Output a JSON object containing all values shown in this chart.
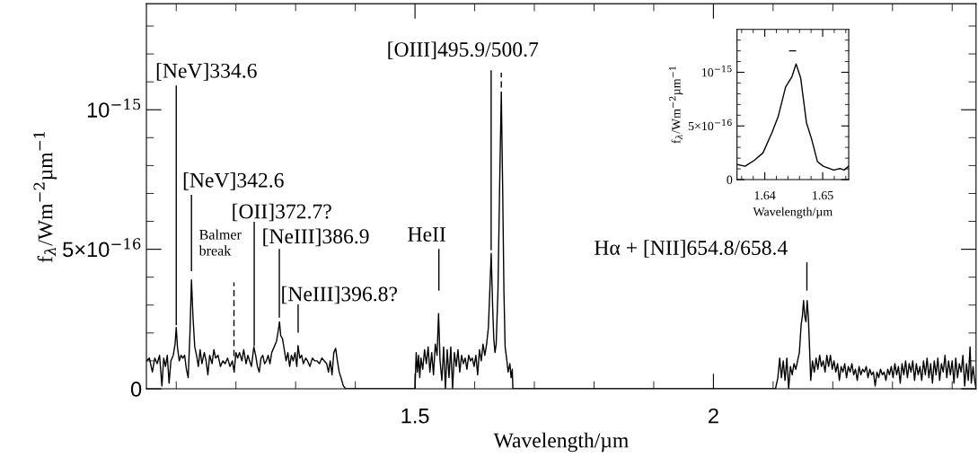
{
  "chart_data": [
    {
      "type": "line",
      "xlabel": "Wavelength/µm",
      "ylabel": "f$_{λ}$/Wm$^{−2}$µm$^{−1}$",
      "xlim": [
        1.05,
        2.44
      ],
      "ylim": [
        0,
        1.38e-15
      ],
      "xticks": [
        {
          "value": 1.1,
          "label": null
        },
        {
          "value": 1.2,
          "label": null
        },
        {
          "value": 1.3,
          "label": null
        },
        {
          "value": 1.4,
          "label": null
        },
        1.5,
        {
          "value": 1.6,
          "label": null
        },
        {
          "value": 1.7,
          "label": null
        },
        {
          "value": 1.8,
          "label": null
        },
        {
          "value": 1.9,
          "label": null
        },
        2,
        {
          "value": 2.1,
          "label": null
        },
        {
          "value": 2.2,
          "label": null
        },
        {
          "value": 2.3,
          "label": null
        },
        {
          "value": 2.4,
          "label": null
        }
      ],
      "yticks": [
        0,
        {
          "value": 1e-16,
          "label": null
        },
        {
          "value": 2e-16,
          "label": null
        },
        {
          "value": 3e-16,
          "label": null
        },
        {
          "value": 4e-16,
          "label": null
        },
        {
          "value": 5e-16,
          "label": "5×10$^{−16}$"
        },
        {
          "value": 6e-16,
          "label": null
        },
        {
          "value": 7e-16,
          "label": null
        },
        {
          "value": 8e-16,
          "label": null
        },
        {
          "value": 9e-16,
          "label": null
        },
        {
          "value": 1e-15,
          "label": "10$^{−15}$"
        },
        {
          "value": 1.1e-15,
          "label": null
        },
        {
          "value": 1.2e-15,
          "label": null
        },
        {
          "value": 1.3e-15,
          "label": null
        }
      ],
      "grid": false,
      "line_style": "solid",
      "marker": "none",
      "series": [
        {
          "color": "#000000",
          "x": [
            1.05,
            1.055,
            1.06,
            1.064,
            1.068,
            1.072,
            1.076,
            1.079,
            1.082,
            1.085,
            1.088,
            1.091,
            1.095,
            1.098,
            1.1,
            1.102,
            1.105,
            1.108,
            1.111,
            1.114,
            1.117,
            1.12,
            1.123,
            1.1255,
            1.128,
            1.131,
            1.134,
            1.137,
            1.14,
            1.143,
            1.147,
            1.15,
            1.153,
            1.156,
            1.16,
            1.163,
            1.166,
            1.17,
            1.174,
            1.178,
            1.182,
            1.186,
            1.19,
            1.194,
            1.197,
            1.2,
            1.203,
            1.206,
            1.21,
            1.213,
            1.217,
            1.22,
            1.223,
            1.226,
            1.23,
            1.233,
            1.236,
            1.239,
            1.242,
            1.245,
            1.248,
            1.251,
            1.254,
            1.257,
            1.26,
            1.264,
            1.268,
            1.271,
            1.273,
            1.275,
            1.278,
            1.281,
            1.284,
            1.287,
            1.29,
            1.293,
            1.296,
            1.299,
            1.302,
            1.304,
            1.307,
            1.31,
            1.313,
            1.317,
            1.32,
            1.324,
            1.328,
            1.332,
            1.336,
            1.34,
            1.344,
            1.348,
            1.352,
            1.355,
            1.358,
            1.361,
            1.364,
            1.367,
            1.37,
            1.373,
            1.376,
            1.38,
            1.384,
            1.5,
            1.502,
            1.504,
            1.506,
            1.508,
            1.51,
            1.513,
            1.516,
            1.519,
            1.522,
            1.525,
            1.528,
            1.531,
            1.534,
            1.537,
            1.5395,
            1.542,
            1.545,
            1.548,
            1.551,
            1.554,
            1.557,
            1.56,
            1.563,
            1.566,
            1.569,
            1.572,
            1.575,
            1.578,
            1.581,
            1.584,
            1.587,
            1.59,
            1.593,
            1.596,
            1.599,
            1.602,
            1.605,
            1.608,
            1.611,
            1.614,
            1.617,
            1.62,
            1.623,
            1.6255,
            1.6277,
            1.63,
            1.632,
            1.634,
            1.636,
            1.639,
            1.642,
            1.6446,
            1.647,
            1.649,
            1.651,
            1.654,
            1.656,
            1.659,
            1.661,
            1.663,
            1.664,
            2.104,
            2.108,
            2.111,
            2.114,
            2.117,
            2.12,
            2.123,
            2.126,
            2.129,
            2.132,
            2.135,
            2.138,
            2.141,
            2.144,
            2.147,
            2.149,
            2.151,
            2.153,
            2.155,
            2.157,
            2.159,
            2.161,
            2.163,
            2.166,
            2.169,
            2.172,
            2.175,
            2.178,
            2.181,
            2.184,
            2.187,
            2.19,
            2.193,
            2.196,
            2.199,
            2.202,
            2.205,
            2.208,
            2.211,
            2.214,
            2.217,
            2.22,
            2.223,
            2.226,
            2.229,
            2.232,
            2.235,
            2.238,
            2.241,
            2.244,
            2.247,
            2.25,
            2.253,
            2.256,
            2.259,
            2.262,
            2.265,
            2.268,
            2.271,
            2.274,
            2.277,
            2.28,
            2.283,
            2.286,
            2.289,
            2.292,
            2.295,
            2.298,
            2.301,
            2.304,
            2.307,
            2.31,
            2.313,
            2.316,
            2.319,
            2.322,
            2.325,
            2.328,
            2.331,
            2.334,
            2.337,
            2.34,
            2.343,
            2.346,
            2.349,
            2.352,
            2.355,
            2.358,
            2.361,
            2.364,
            2.367,
            2.37,
            2.373,
            2.376,
            2.379,
            2.382,
            2.385,
            2.388,
            2.391,
            2.394,
            2.397,
            2.4,
            2.403,
            2.406,
            2.409,
            2.412,
            2.415,
            2.418,
            2.421,
            2.424,
            2.427,
            2.43,
            2.432,
            2.435,
            2.437,
            2.44
          ],
          "values": [
            1e-16,
            1.1e-16,
            6e-17,
            1.1e-16,
            9e-17,
            1.2e-16,
            1e-17,
            1.1e-16,
            8e-17,
            1.2e-16,
            2e-17,
            1e-16,
            1.2e-16,
            1.6e-16,
            2.2e-16,
            1.5e-16,
            1e-16,
            1.2e-16,
            1.1e-16,
            1.2e-16,
            7e-17,
            4e-17,
            2e-16,
            3.9e-16,
            2.6e-16,
            1.5e-16,
            1.2e-16,
            8e-17,
            1.4e-16,
            9e-17,
            1.3e-16,
            1e-16,
            5e-17,
            1.2e-16,
            9e-17,
            1.4e-16,
            1.1e-16,
            1.2e-16,
            8e-17,
            1e-16,
            9e-17,
            1.1e-16,
            8e-17,
            1e-16,
            6e-17,
            1.3e-16,
            1.1e-16,
            1.3e-16,
            1e-16,
            1.4e-16,
            9e-17,
            1.2e-16,
            1e-16,
            8e-17,
            1.5e-16,
            1.2e-16,
            8e-17,
            6e-17,
            1.1e-16,
            1.2e-16,
            9e-17,
            1e-16,
            1.2e-16,
            9e-17,
            1.3e-16,
            1.5e-16,
            1.7e-16,
            2.1e-16,
            2.4e-16,
            1.9e-16,
            1.8e-16,
            1.4e-16,
            1e-16,
            1.3e-16,
            8e-17,
            1.2e-16,
            1e-16,
            1.3e-16,
            8e-17,
            1.55e-16,
            1.1e-16,
            1.2e-16,
            9e-17,
            1.1e-16,
            1e-16,
            8e-17,
            1.1e-16,
            1e-16,
            1e-16,
            9e-17,
            1.1e-16,
            1e-16,
            9e-17,
            6e-17,
            1e-16,
            5e-17,
            1.3e-16,
            1.45e-16,
            1e-16,
            6e-17,
            4e-17,
            1e-17,
            0,
            0,
            1.3e-16,
            6e-17,
            1.2e-16,
            4e-17,
            1.1e-16,
            7e-17,
            1.4e-16,
            9e-17,
            1.5e-16,
            6e-17,
            1.3e-16,
            5e-17,
            1.6e-16,
            1.2e-16,
            2.7e-16,
            1e-16,
            3e-17,
            1.5e-16,
            0,
            1.4e-16,
            4e-17,
            1.5e-16,
            0,
            1.3e-16,
            8e-17,
            1.4e-16,
            6e-17,
            1.2e-16,
            9e-17,
            1.1e-16,
            7e-17,
            1.2e-16,
            1e-16,
            1.1e-16,
            8e-17,
            1.2e-16,
            5e-17,
            1.4e-16,
            1e-16,
            1.6e-16,
            1.2e-16,
            1.6e-16,
            2.2e-16,
            3.6e-16,
            4.85e-16,
            3e-16,
            1.8e-16,
            1.3e-16,
            1.6e-16,
            3.5e-16,
            7.5e-16,
            1.064e-15,
            7e-16,
            3.5e-16,
            1.5e-16,
            1e-16,
            6e-17,
            9e-17,
            4e-17,
            7e-17,
            0,
            0,
            4e-17,
            1.1e-16,
            4e-17,
            1e-16,
            3e-17,
            1.1e-16,
            0,
            8e-17,
            5e-17,
            9e-17,
            7e-17,
            1e-16,
            1.3e-16,
            2.3e-16,
            2.6e-16,
            3.16e-16,
            2.6e-16,
            2.4e-16,
            3.16e-16,
            2.6e-16,
            1.5e-16,
            3e-17,
            1e-16,
            6e-17,
            1.1e-16,
            7e-17,
            1.2e-16,
            8e-17,
            1e-16,
            6e-17,
            1.2e-16,
            8e-17,
            1.2e-16,
            7e-17,
            1e-16,
            6e-17,
            9e-17,
            3e-17,
            8e-17,
            6e-17,
            9e-17,
            4e-17,
            8e-17,
            6e-17,
            9e-17,
            5e-17,
            7e-17,
            3e-17,
            8e-17,
            5e-17,
            7e-17,
            6e-17,
            8e-17,
            4e-17,
            7e-17,
            5e-17,
            6e-17,
            1e-17,
            6e-17,
            4e-17,
            7e-17,
            5e-17,
            6e-17,
            3e-17,
            7e-17,
            5e-17,
            8e-17,
            4e-17,
            9e-17,
            5e-17,
            8e-17,
            2e-17,
            9e-17,
            5e-17,
            1e-16,
            4e-17,
            9e-17,
            6e-17,
            1e-16,
            3e-17,
            9e-17,
            5e-17,
            8e-17,
            3e-17,
            1e-16,
            5e-17,
            1.1e-16,
            4e-17,
            9e-17,
            2e-17,
            1e-16,
            5e-17,
            1.1e-16,
            3e-17,
            9e-17,
            6e-17,
            1.2e-16,
            4e-17,
            1e-16,
            5e-17,
            1e-16,
            2e-17,
            1.1e-16,
            4e-17,
            9e-17,
            6e-17,
            1.2e-16,
            1e-17,
            9e-17,
            3e-17,
            1.5e-16,
            2e-17,
            8e-17,
            4e-17,
            0
          ]
        },
        {
          "color": "#000000",
          "x": [
            1.1,
            1.1
          ],
          "values": [
            2.3e-16,
            1.085e-15
          ]
        },
        {
          "color": "#000000",
          "x": [
            1.1255,
            1.1255
          ],
          "values": [
            4.24e-16,
            6.93e-16
          ]
        },
        {
          "color": "#000000",
          "line_style": "dashed",
          "x": [
            1.1967,
            1.1967
          ],
          "values": [
            1.17e-16,
            3.81e-16
          ]
        },
        {
          "color": "#000000",
          "x": [
            1.2306,
            1.2306
          ],
          "values": [
            1.55e-16,
            5.96e-16
          ]
        },
        {
          "color": "#000000",
          "x": [
            1.2727,
            1.2727
          ],
          "values": [
            2.57e-16,
            4.99e-16
          ]
        },
        {
          "color": "#000000",
          "x": [
            1.3042,
            1.3042
          ],
          "values": [
            2.03e-16,
            3e-16
          ]
        },
        {
          "color": "#000000",
          "x": [
            1.54,
            1.54
          ],
          "values": [
            3.54e-16,
            4.99e-16
          ]
        },
        {
          "color": "#000000",
          "x": [
            1.6276,
            1.6276
          ],
          "values": [
            4.99e-16,
            1.139e-15
          ]
        },
        {
          "color": "#000000",
          "line_style": "dashed",
          "x": [
            1.6446,
            1.6446
          ],
          "values": [
            1.08e-15,
            1.133e-15
          ]
        },
        {
          "color": "#000000",
          "x": [
            2.1566,
            2.1566
          ],
          "values": [
            3.54e-16,
            4.51e-16
          ]
        }
      ],
      "annotations": [
        "[NeV]334.6",
        "[NeV]342.6",
        "Balmer\nbreak",
        "[OII]372.7?",
        "[NeIII]386.9",
        "[NeIII]396.8?",
        "HeII",
        "[OIII]495.9/500.7",
        "Hα + [NII]654.8/658.4"
      ]
    },
    {
      "type": "line",
      "xlabel": "Wavelength/µm",
      "ylabel": "f$_{λ}$/Wm$^{−2}$µm$^{−1}$",
      "xlim": [
        1.6352,
        1.6545
      ],
      "ylim": [
        0,
        1.4e-15
      ],
      "xticks": [
        {
          "value": 1.636,
          "label": null
        },
        {
          "value": 1.638,
          "label": null
        },
        1.64,
        {
          "value": 1.642,
          "label": null
        },
        {
          "value": 1.644,
          "label": null
        },
        {
          "value": 1.646,
          "label": null
        },
        {
          "value": 1.648,
          "label": null
        },
        1.65,
        {
          "value": 1.652,
          "label": null
        },
        {
          "value": 1.654,
          "label": null
        }
      ],
      "yticks": [
        0,
        {
          "value": 1e-16,
          "label": null
        },
        {
          "value": 2e-16,
          "label": null
        },
        {
          "value": 3e-16,
          "label": null
        },
        {
          "value": 4e-16,
          "label": null
        },
        {
          "value": 5e-16,
          "label": "5×10$^{−16}$"
        },
        {
          "value": 6e-16,
          "label": null
        },
        {
          "value": 7e-16,
          "label": null
        },
        {
          "value": 8e-16,
          "label": null
        },
        {
          "value": 9e-16,
          "label": null
        },
        {
          "value": 1e-15,
          "label": "10$^{−15}$"
        },
        {
          "value": 1.1e-15,
          "label": null
        },
        {
          "value": 1.2e-15,
          "label": null
        },
        {
          "value": 1.3e-15,
          "label": null
        }
      ],
      "grid": false,
      "line_style": "solid",
      "marker": "none",
      "series": [
        {
          "color": "#000000",
          "x": [
            1.6352,
            1.6366,
            1.6382,
            1.6397,
            1.6413,
            1.6423,
            1.6436,
            1.6447,
            1.6454,
            1.6462,
            1.6472,
            1.6481,
            1.6491,
            1.6501,
            1.6519,
            1.653,
            1.6537,
            1.6545
          ],
          "values": [
            1.4e-16,
            1.25e-16,
            1.8e-16,
            2.5e-16,
            4.45e-16,
            5.85e-16,
            8.63e-16,
            9.6e-16,
            1.078e-15,
            9.47e-16,
            5.3e-16,
            3.76e-16,
            1.67e-16,
            1.25e-16,
            8.9e-17,
            1.03e-16,
            8.9e-17,
            1.25e-16
          ]
        },
        {
          "color": "#000000",
          "x": [
            1.6443,
            1.6453
          ],
          "values": [
            1.2e-15,
            1.2e-15
          ]
        }
      ]
    }
  ]
}
